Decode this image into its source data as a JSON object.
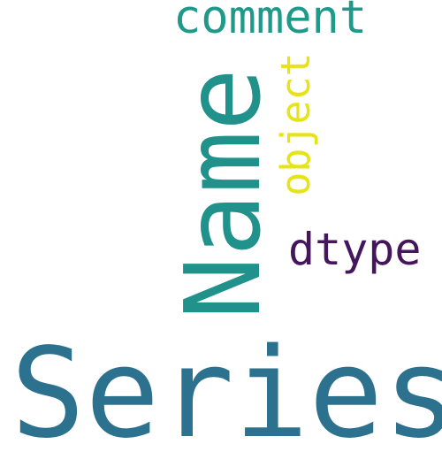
{
  "words": {
    "series": "Series",
    "name": "Name",
    "comment": "comment",
    "object": "object",
    "dtype": "dtype"
  },
  "colors": {
    "series": "#2c728e",
    "name": "#21918c",
    "comment": "#1f9a8a",
    "object": "#e6e419",
    "dtype": "#44175d",
    "background": "#ffffff"
  }
}
